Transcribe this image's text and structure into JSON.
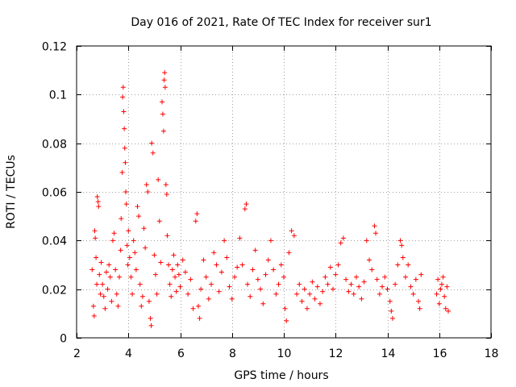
{
  "chart_data": {
    "type": "scatter",
    "title": "Day 016 of 2021, Rate Of TEC Index for receiver sur1",
    "xlabel": "GPS time / hours",
    "ylabel": "ROTI / TECUs",
    "xlim": [
      2,
      18
    ],
    "ylim": [
      0,
      0.12
    ],
    "xticks": [
      2,
      4,
      6,
      8,
      10,
      12,
      14,
      16,
      18
    ],
    "yticks": [
      0,
      0.02,
      0.04,
      0.06,
      0.08,
      0.1,
      0.12
    ],
    "xtick_labels": [
      "2",
      "4",
      "6",
      "8",
      "10",
      "12",
      "14",
      "16",
      "18"
    ],
    "ytick_labels": [
      "0",
      "0.02",
      "0.04",
      "0.06",
      "0.08",
      "0.1",
      "0.12"
    ],
    "grid": true,
    "marker": "+",
    "color": "#ff0000",
    "series": [
      {
        "name": "sur1",
        "points": [
          [
            2.6,
            0.028
          ],
          [
            2.65,
            0.013
          ],
          [
            2.68,
            0.009
          ],
          [
            2.7,
            0.044
          ],
          [
            2.72,
            0.041
          ],
          [
            2.75,
            0.033
          ],
          [
            2.78,
            0.022
          ],
          [
            2.8,
            0.058
          ],
          [
            2.83,
            0.056
          ],
          [
            2.85,
            0.054
          ],
          [
            2.88,
            0.026
          ],
          [
            2.92,
            0.018
          ],
          [
            2.95,
            0.031
          ],
          [
            3.0,
            0.022
          ],
          [
            3.05,
            0.017
          ],
          [
            3.1,
            0.012
          ],
          [
            3.15,
            0.027
          ],
          [
            3.2,
            0.02
          ],
          [
            3.25,
            0.03
          ],
          [
            3.3,
            0.025
          ],
          [
            3.35,
            0.015
          ],
          [
            3.4,
            0.04
          ],
          [
            3.45,
            0.043
          ],
          [
            3.5,
            0.028
          ],
          [
            3.55,
            0.018
          ],
          [
            3.6,
            0.013
          ],
          [
            3.65,
            0.025
          ],
          [
            3.7,
            0.036
          ],
          [
            3.72,
            0.049
          ],
          [
            3.76,
            0.068
          ],
          [
            3.78,
            0.099
          ],
          [
            3.8,
            0.103
          ],
          [
            3.82,
            0.093
          ],
          [
            3.84,
            0.086
          ],
          [
            3.86,
            0.078
          ],
          [
            3.88,
            0.072
          ],
          [
            3.9,
            0.06
          ],
          [
            3.92,
            0.055
          ],
          [
            3.95,
            0.038
          ],
          [
            3.98,
            0.03
          ],
          [
            4.0,
            0.044
          ],
          [
            4.05,
            0.033
          ],
          [
            4.1,
            0.025
          ],
          [
            4.15,
            0.018
          ],
          [
            4.2,
            0.04
          ],
          [
            4.25,
            0.035
          ],
          [
            4.3,
            0.028
          ],
          [
            4.35,
            0.054
          ],
          [
            4.4,
            0.05
          ],
          [
            4.45,
            0.022
          ],
          [
            4.5,
            0.013
          ],
          [
            4.55,
            0.017
          ],
          [
            4.6,
            0.045
          ],
          [
            4.65,
            0.037
          ],
          [
            4.7,
            0.063
          ],
          [
            4.75,
            0.06
          ],
          [
            4.8,
            0.015
          ],
          [
            4.85,
            0.008
          ],
          [
            4.88,
            0.005
          ],
          [
            4.9,
            0.08
          ],
          [
            4.95,
            0.076
          ],
          [
            5.0,
            0.034
          ],
          [
            5.05,
            0.026
          ],
          [
            5.1,
            0.018
          ],
          [
            5.15,
            0.065
          ],
          [
            5.2,
            0.048
          ],
          [
            5.25,
            0.031
          ],
          [
            5.3,
            0.097
          ],
          [
            5.33,
            0.092
          ],
          [
            5.36,
            0.085
          ],
          [
            5.38,
            0.106
          ],
          [
            5.4,
            0.109
          ],
          [
            5.42,
            0.103
          ],
          [
            5.45,
            0.063
          ],
          [
            5.48,
            0.059
          ],
          [
            5.5,
            0.042
          ],
          [
            5.55,
            0.03
          ],
          [
            5.6,
            0.022
          ],
          [
            5.65,
            0.017
          ],
          [
            5.7,
            0.028
          ],
          [
            5.75,
            0.034
          ],
          [
            5.8,
            0.025
          ],
          [
            5.85,
            0.019
          ],
          [
            5.9,
            0.03
          ],
          [
            5.95,
            0.026
          ],
          [
            6.0,
            0.021
          ],
          [
            6.1,
            0.032
          ],
          [
            6.2,
            0.027
          ],
          [
            6.3,
            0.018
          ],
          [
            6.4,
            0.024
          ],
          [
            6.5,
            0.012
          ],
          [
            6.6,
            0.048
          ],
          [
            6.65,
            0.051
          ],
          [
            6.7,
            0.013
          ],
          [
            6.75,
            0.008
          ],
          [
            6.8,
            0.02
          ],
          [
            6.9,
            0.032
          ],
          [
            7.0,
            0.025
          ],
          [
            7.1,
            0.016
          ],
          [
            7.2,
            0.022
          ],
          [
            7.3,
            0.035
          ],
          [
            7.4,
            0.03
          ],
          [
            7.5,
            0.019
          ],
          [
            7.6,
            0.027
          ],
          [
            7.7,
            0.04
          ],
          [
            7.8,
            0.033
          ],
          [
            7.9,
            0.021
          ],
          [
            8.0,
            0.016
          ],
          [
            8.1,
            0.025
          ],
          [
            8.2,
            0.029
          ],
          [
            8.3,
            0.041
          ],
          [
            8.4,
            0.03
          ],
          [
            8.5,
            0.053
          ],
          [
            8.55,
            0.055
          ],
          [
            8.6,
            0.022
          ],
          [
            8.7,
            0.017
          ],
          [
            8.8,
            0.028
          ],
          [
            8.9,
            0.036
          ],
          [
            9.0,
            0.024
          ],
          [
            9.1,
            0.02
          ],
          [
            9.2,
            0.014
          ],
          [
            9.3,
            0.026
          ],
          [
            9.4,
            0.032
          ],
          [
            9.5,
            0.04
          ],
          [
            9.6,
            0.028
          ],
          [
            9.7,
            0.018
          ],
          [
            9.8,
            0.022
          ],
          [
            9.9,
            0.03
          ],
          [
            10.0,
            0.025
          ],
          [
            10.05,
            0.012
          ],
          [
            10.1,
            0.007
          ],
          [
            10.2,
            0.035
          ],
          [
            10.3,
            0.044
          ],
          [
            10.4,
            0.042
          ],
          [
            10.5,
            0.018
          ],
          [
            10.6,
            0.022
          ],
          [
            10.7,
            0.015
          ],
          [
            10.8,
            0.02
          ],
          [
            10.9,
            0.012
          ],
          [
            11.0,
            0.018
          ],
          [
            11.1,
            0.023
          ],
          [
            11.2,
            0.016
          ],
          [
            11.3,
            0.021
          ],
          [
            11.4,
            0.014
          ],
          [
            11.5,
            0.019
          ],
          [
            11.6,
            0.025
          ],
          [
            11.7,
            0.022
          ],
          [
            11.8,
            0.029
          ],
          [
            11.9,
            0.02
          ],
          [
            12.0,
            0.026
          ],
          [
            12.1,
            0.03
          ],
          [
            12.2,
            0.039
          ],
          [
            12.3,
            0.041
          ],
          [
            12.4,
            0.024
          ],
          [
            12.5,
            0.019
          ],
          [
            12.6,
            0.022
          ],
          [
            12.7,
            0.018
          ],
          [
            12.8,
            0.025
          ],
          [
            12.9,
            0.021
          ],
          [
            13.0,
            0.016
          ],
          [
            13.1,
            0.023
          ],
          [
            13.2,
            0.04
          ],
          [
            13.3,
            0.032
          ],
          [
            13.4,
            0.028
          ],
          [
            13.5,
            0.046
          ],
          [
            13.55,
            0.043
          ],
          [
            13.6,
            0.024
          ],
          [
            13.7,
            0.018
          ],
          [
            13.8,
            0.021
          ],
          [
            13.9,
            0.025
          ],
          [
            14.0,
            0.02
          ],
          [
            14.1,
            0.015
          ],
          [
            14.15,
            0.011
          ],
          [
            14.2,
            0.008
          ],
          [
            14.3,
            0.022
          ],
          [
            14.4,
            0.03
          ],
          [
            14.5,
            0.04
          ],
          [
            14.55,
            0.038
          ],
          [
            14.6,
            0.033
          ],
          [
            14.7,
            0.025
          ],
          [
            14.8,
            0.03
          ],
          [
            14.9,
            0.021
          ],
          [
            15.0,
            0.018
          ],
          [
            15.1,
            0.024
          ],
          [
            15.2,
            0.015
          ],
          [
            15.25,
            0.012
          ],
          [
            15.3,
            0.026
          ],
          [
            15.9,
            0.018
          ],
          [
            15.95,
            0.024
          ],
          [
            16.0,
            0.014
          ],
          [
            16.05,
            0.02
          ],
          [
            16.1,
            0.022
          ],
          [
            16.15,
            0.025
          ],
          [
            16.2,
            0.017
          ],
          [
            16.25,
            0.012
          ],
          [
            16.3,
            0.021
          ],
          [
            16.35,
            0.011
          ]
        ]
      }
    ]
  }
}
